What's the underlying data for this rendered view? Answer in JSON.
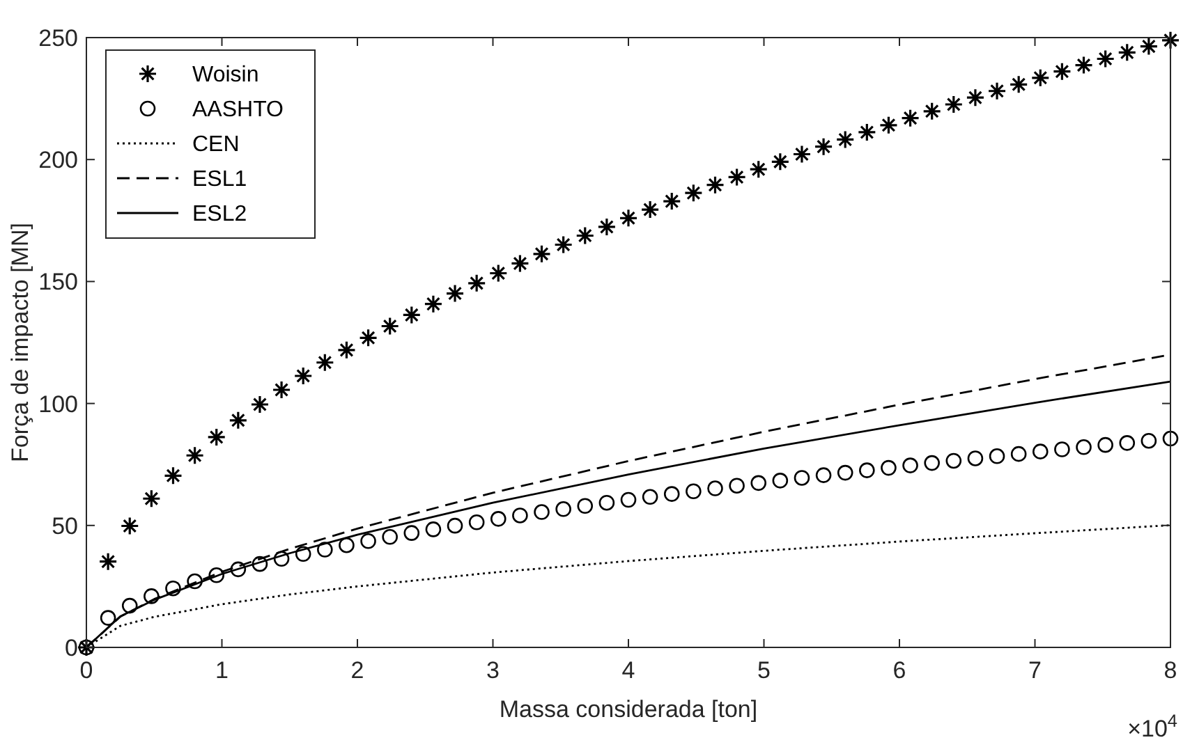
{
  "chart_data": {
    "type": "line",
    "xlabel": "Massa considerada [ton]",
    "ylabel": "Força de impacto [MN]",
    "xlim": [
      0,
      8
    ],
    "ylim": [
      0,
      250
    ],
    "xticks": [
      0,
      1,
      2,
      3,
      4,
      5,
      6,
      7,
      8
    ],
    "yticks": [
      0,
      50,
      100,
      150,
      200,
      250
    ],
    "annotations": [
      "×10$^{4}$"
    ],
    "legend": "top left",
    "grid": false,
    "series": [
      {
        "name": "Woisin",
        "type": "scatter",
        "marker": "cross",
        "color": "#000000",
        "x": [
          0,
          0.16,
          0.32,
          0.48,
          0.64,
          0.8,
          0.96,
          1.12,
          1.28,
          1.44,
          1.6,
          1.76,
          1.92,
          2.08,
          2.24,
          2.4,
          2.56,
          2.72,
          2.88,
          3.04,
          3.2,
          3.36,
          3.52,
          3.68,
          3.84,
          4,
          4.16,
          4.32,
          4.48,
          4.64,
          4.8,
          4.96,
          5.12,
          5.28,
          5.44,
          5.6,
          5.76,
          5.92,
          6.08,
          6.24,
          6.4,
          6.56,
          6.72,
          6.88,
          7.04,
          7.2,
          7.36,
          7.52,
          7.68,
          7.84,
          8
        ],
        "values": [
          0,
          35.2,
          49.8,
          61.0,
          70.4,
          78.7,
          86.2,
          93.1,
          99.6,
          105.6,
          111.3,
          116.8,
          121.9,
          126.9,
          131.7,
          136.3,
          140.8,
          145.1,
          149.3,
          153.4,
          157.4,
          161.3,
          165.1,
          168.8,
          172.4,
          176.0,
          179.5,
          182.9,
          186.3,
          189.6,
          192.8,
          196.0,
          199.1,
          202.2,
          205.3,
          208.2,
          211.2,
          214.1,
          217.0,
          219.8,
          222.6,
          225.4,
          228.1,
          230.8,
          233.5,
          236.1,
          238.7,
          241.3,
          243.9,
          246.4,
          248.9
        ]
      },
      {
        "name": "AASHTO",
        "type": "scatter",
        "marker": "circle",
        "color": "#000000",
        "x": [
          0,
          0.16,
          0.32,
          0.48,
          0.64,
          0.8,
          0.96,
          1.12,
          1.28,
          1.44,
          1.6,
          1.76,
          1.92,
          2.08,
          2.24,
          2.4,
          2.56,
          2.72,
          2.88,
          3.04,
          3.2,
          3.36,
          3.52,
          3.68,
          3.84,
          4,
          4.16,
          4.32,
          4.48,
          4.64,
          4.8,
          4.96,
          5.12,
          5.28,
          5.44,
          5.6,
          5.76,
          5.92,
          6.08,
          6.24,
          6.4,
          6.56,
          6.72,
          6.88,
          7.04,
          7.2,
          7.36,
          7.52,
          7.68,
          7.84,
          8
        ],
        "values": [
          0,
          12.1,
          17.1,
          21.0,
          24.2,
          27.1,
          29.6,
          32.0,
          34.2,
          36.3,
          38.3,
          40.1,
          41.9,
          43.6,
          45.3,
          46.9,
          48.4,
          49.9,
          51.3,
          52.7,
          54.1,
          55.5,
          56.7,
          58.0,
          59.3,
          60.5,
          61.7,
          62.9,
          64.0,
          65.2,
          66.3,
          67.4,
          68.4,
          69.5,
          70.6,
          71.6,
          72.6,
          73.6,
          74.6,
          75.6,
          76.5,
          77.5,
          78.4,
          79.3,
          80.3,
          81.2,
          82.1,
          83.0,
          83.8,
          84.7,
          85.6
        ]
      },
      {
        "name": "CEN",
        "type": "line",
        "line_style": "dotted",
        "color": "#000000",
        "x": [
          0,
          0.25,
          0.5,
          1,
          1.5,
          2,
          3,
          4,
          5,
          6,
          7,
          8
        ],
        "values": [
          0,
          8.8,
          12.5,
          17.7,
          21.7,
          25.0,
          30.7,
          35.4,
          39.6,
          43.4,
          46.8,
          50.1
        ]
      },
      {
        "name": "ESL1",
        "type": "line",
        "line_style": "dashed",
        "color": "#000000",
        "x": [
          0,
          0.25,
          0.5,
          1,
          1.5,
          2,
          3,
          4,
          5,
          6,
          7,
          8
        ],
        "values": [
          0,
          12.6,
          19.8,
          31.0,
          40.4,
          48.7,
          63.4,
          76.4,
          88.4,
          99.5,
          110.0,
          120
        ]
      },
      {
        "name": "ESL2",
        "type": "line",
        "line_style": "solid",
        "color": "#000000",
        "x": [
          0,
          0.25,
          0.5,
          1,
          1.5,
          2,
          3,
          4,
          5,
          6,
          7,
          8
        ],
        "values": [
          0,
          12.7,
          19.5,
          30.1,
          38.6,
          46.2,
          59.3,
          70.9,
          81.5,
          91.1,
          100.3,
          109
        ]
      }
    ]
  }
}
